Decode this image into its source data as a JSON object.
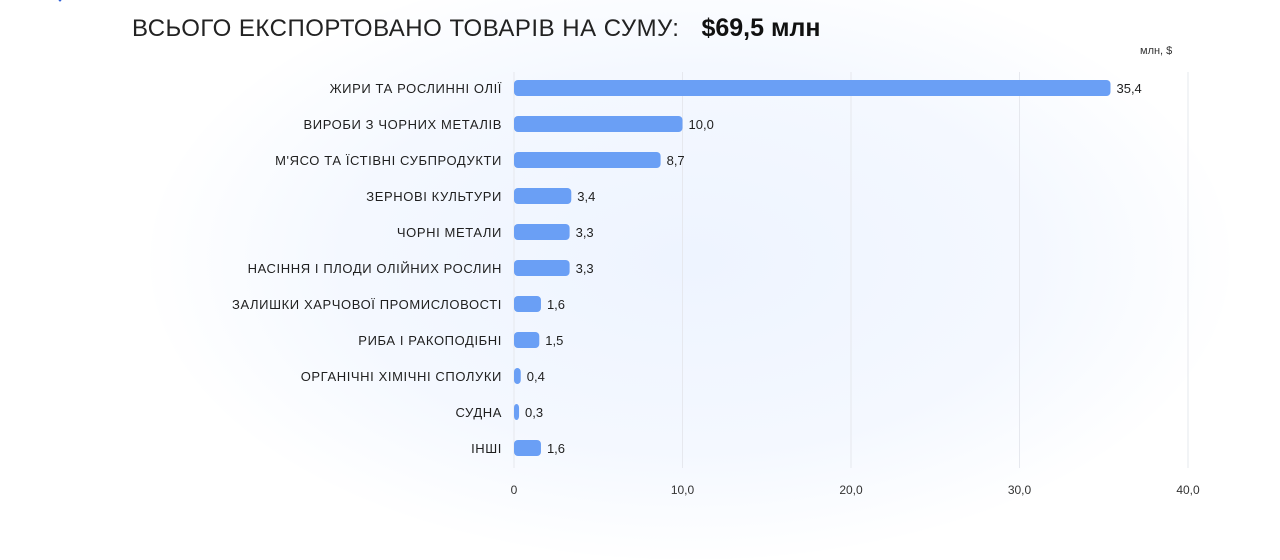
{
  "header": {
    "title": "ВСЬОГО ЕКСПОРТОВАНО ТОВАРІВ НА СУМУ:",
    "total": "$69,5 млн"
  },
  "colors": {
    "bar": "#6a9ff5",
    "grid": "#e6e8ee",
    "text": "#1f1f1f"
  },
  "chart_data": {
    "type": "bar",
    "orientation": "horizontal",
    "unit_label": "млн, $",
    "categories": [
      "ЖИРИ ТА РОСЛИННІ ОЛІЇ",
      "ВИРОБИ З ЧОРНИХ МЕТАЛІВ",
      "М'ЯСО ТА ЇСТІВНІ СУБПРОДУКТИ",
      "ЗЕРНОВІ КУЛЬТУРИ",
      "ЧОРНІ МЕТАЛИ",
      "НАСІННЯ І ПЛОДИ ОЛІЙНИХ РОСЛИН",
      "ЗАЛИШКИ ХАРЧОВОЇ ПРОМИСЛОВОСТІ",
      "РИБА І РАКОПОДІБНІ",
      "ОРГАНІЧНІ ХІМІЧНІ СПОЛУКИ",
      "СУДНА",
      "ІНШІ"
    ],
    "values": [
      35.4,
      10.0,
      8.7,
      3.4,
      3.3,
      3.3,
      1.6,
      1.5,
      0.4,
      0.3,
      1.6
    ],
    "value_labels": [
      "35,4",
      "10,0",
      "8,7",
      "3,4",
      "3,3",
      "3,3",
      "1,6",
      "1,5",
      "0,4",
      "0,3",
      "1,6"
    ],
    "xlim": [
      0,
      40
    ],
    "ticks": [
      0,
      10,
      20,
      30,
      40
    ],
    "tick_labels": [
      "0",
      "10,0",
      "20,0",
      "30,0",
      "40,0"
    ],
    "grid": true
  }
}
